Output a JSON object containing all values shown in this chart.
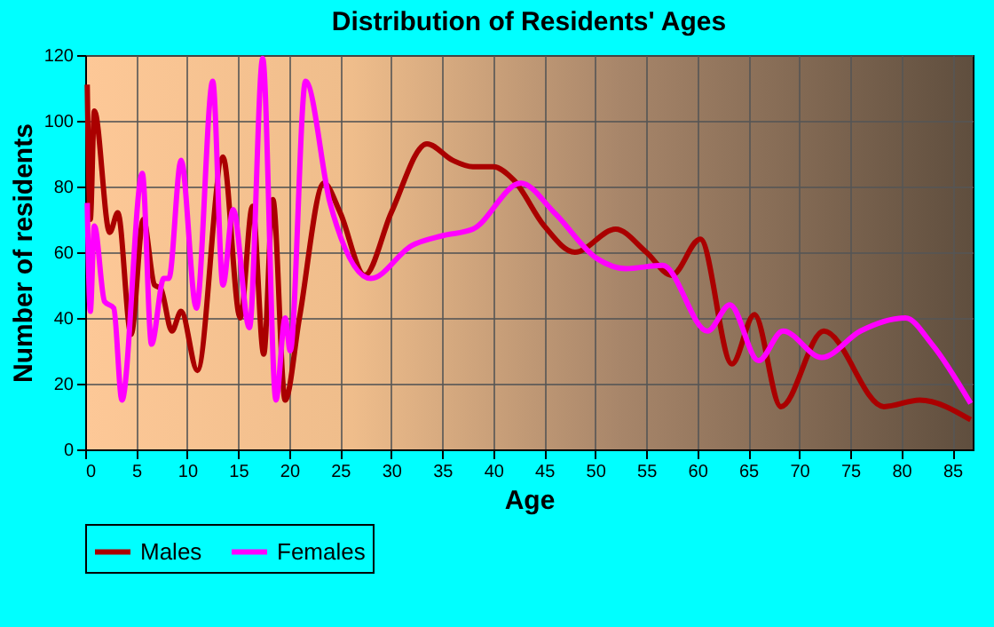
{
  "chart_data": {
    "type": "line",
    "title": "Distribution of Residents' Ages",
    "xlabel": "Age",
    "ylabel": "Number of residents",
    "xlim": [
      0,
      87
    ],
    "xticks": [
      0,
      5,
      10,
      15,
      20,
      25,
      30,
      35,
      40,
      45,
      50,
      55,
      60,
      65,
      70,
      75,
      80,
      85
    ],
    "ylim": [
      0,
      120
    ],
    "yticks": [
      0,
      20,
      40,
      60,
      80,
      100,
      120
    ],
    "grid": true,
    "legend": "bottom",
    "marker": "none",
    "line_style": "solid",
    "series": [
      {
        "name": "Males",
        "color": "#aa0000",
        "x": [
          0.2,
          0.5,
          0.9,
          2.4,
          3.2,
          4.5,
          5.7,
          6.8,
          7.4,
          8.5,
          9.4,
          11,
          13.5,
          15.2,
          16.4,
          17.5,
          18.4,
          19.6,
          21,
          23.4,
          25,
          27.4,
          30,
          33.5,
          36,
          38,
          40,
          42,
          45,
          48,
          52,
          55,
          57.5,
          60.3,
          63.4,
          65.6,
          68.2,
          72.4,
          78.3,
          81.8,
          86.8
        ],
        "values": [
          111,
          70,
          103,
          66,
          72,
          35,
          70,
          50,
          49,
          36,
          42,
          24,
          89,
          40,
          74,
          29,
          76,
          15,
          40,
          81,
          72,
          53,
          72,
          93,
          88,
          86,
          86,
          82,
          68,
          60,
          67,
          60,
          53,
          64,
          26,
          41,
          13,
          36,
          13,
          15,
          9
        ]
      },
      {
        "name": "Females",
        "color": "#ff00ff",
        "x": [
          0.2,
          0.5,
          0.9,
          1.9,
          2.8,
          3.6,
          5.6,
          6.5,
          7.7,
          8.2,
          9.4,
          10.9,
          12.5,
          13.5,
          14.5,
          16.1,
          17.4,
          18.7,
          19.6,
          20.1,
          21.6,
          24,
          28,
          32,
          35,
          38,
          42.7,
          46,
          50.2,
          53,
          56.6,
          61,
          63.2,
          66,
          68.4,
          72.2,
          76,
          80.4,
          83,
          86.8
        ],
        "values": [
          75,
          42,
          68,
          45,
          43,
          15,
          84,
          32,
          52,
          52,
          88,
          43,
          112,
          50,
          73,
          37,
          119,
          15,
          40,
          30,
          112,
          75,
          52,
          62,
          65,
          67,
          81,
          72,
          58,
          55,
          56,
          36,
          44,
          27,
          36,
          28,
          36,
          40,
          32,
          14
        ]
      }
    ]
  }
}
